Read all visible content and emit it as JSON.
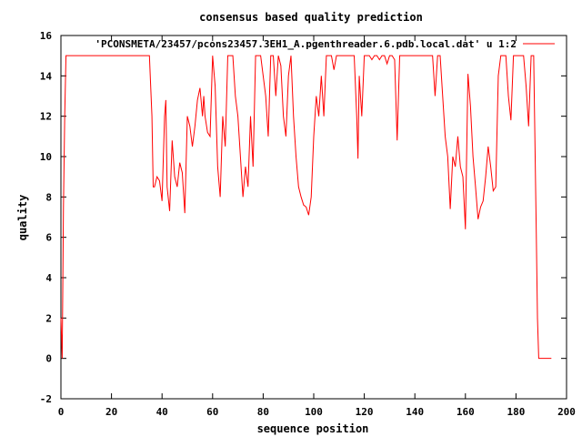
{
  "chart_data": {
    "type": "line",
    "title": "consensus based quality prediction",
    "xlabel": "sequence position",
    "ylabel": "quality",
    "xlim": [
      0,
      200
    ],
    "ylim": [
      -2,
      16
    ],
    "xticks": [
      0,
      20,
      40,
      60,
      80,
      100,
      120,
      140,
      160,
      180,
      200
    ],
    "yticks": [
      -2,
      0,
      2,
      4,
      6,
      8,
      10,
      12,
      14,
      16
    ],
    "grid": false,
    "legend_position": "top-right",
    "line_color": "#ff0000",
    "series": [
      {
        "name": "'PCONSMETA/23457/pcons23457.3EH1_A.pgenthreader.6.pdb.local.dat' u 1:2",
        "points": [
          [
            0,
            2.0
          ],
          [
            0.5,
            0.0
          ],
          [
            1,
            7.5
          ],
          [
            1.5,
            12.0
          ],
          [
            2,
            15.0
          ],
          [
            35,
            15.0
          ],
          [
            36,
            12.0
          ],
          [
            36.5,
            8.5
          ],
          [
            37,
            8.5
          ],
          [
            38,
            9.0
          ],
          [
            39,
            8.8
          ],
          [
            40,
            7.8
          ],
          [
            41,
            12.0
          ],
          [
            41.5,
            12.8
          ],
          [
            42,
            8.5
          ],
          [
            43,
            7.3
          ],
          [
            44,
            10.8
          ],
          [
            45,
            9.0
          ],
          [
            46,
            8.5
          ],
          [
            47,
            9.7
          ],
          [
            48,
            9.2
          ],
          [
            49,
            7.2
          ],
          [
            50,
            12.0
          ],
          [
            51,
            11.5
          ],
          [
            52,
            10.5
          ],
          [
            53,
            11.5
          ],
          [
            54,
            12.8
          ],
          [
            55,
            13.4
          ],
          [
            56,
            12.0
          ],
          [
            56.5,
            13.0
          ],
          [
            57,
            12.0
          ],
          [
            58,
            11.2
          ],
          [
            59,
            11.0
          ],
          [
            60,
            15.0
          ],
          [
            61,
            13.5
          ],
          [
            62,
            9.5
          ],
          [
            63,
            8.0
          ],
          [
            64,
            12.0
          ],
          [
            65,
            10.5
          ],
          [
            66,
            15.0
          ],
          [
            68,
            15.0
          ],
          [
            69,
            13.0
          ],
          [
            70,
            12.0
          ],
          [
            71,
            10.0
          ],
          [
            72,
            8.0
          ],
          [
            73,
            9.5
          ],
          [
            74,
            8.5
          ],
          [
            75,
            12.0
          ],
          [
            76,
            9.5
          ],
          [
            77,
            15.0
          ],
          [
            79,
            15.0
          ],
          [
            80,
            14.0
          ],
          [
            81,
            13.0
          ],
          [
            82,
            11.0
          ],
          [
            83,
            15.0
          ],
          [
            84,
            15.0
          ],
          [
            85,
            13.0
          ],
          [
            86,
            15.0
          ],
          [
            87,
            14.5
          ],
          [
            88,
            12.0
          ],
          [
            89,
            11.0
          ],
          [
            90,
            14.0
          ],
          [
            91,
            15.0
          ],
          [
            92,
            12.0
          ],
          [
            93,
            10.0
          ],
          [
            94,
            8.5
          ],
          [
            95,
            8.0
          ],
          [
            96,
            7.6
          ],
          [
            97,
            7.5
          ],
          [
            98,
            7.1
          ],
          [
            99,
            8.0
          ],
          [
            100,
            11.0
          ],
          [
            101,
            13.0
          ],
          [
            102,
            12.0
          ],
          [
            103,
            14.0
          ],
          [
            104,
            12.0
          ],
          [
            105,
            15.0
          ],
          [
            107,
            15.0
          ],
          [
            108,
            14.3
          ],
          [
            109,
            15.0
          ],
          [
            116,
            15.0
          ],
          [
            117,
            12.0
          ],
          [
            117.5,
            9.9
          ],
          [
            118,
            14.0
          ],
          [
            119,
            12.0
          ],
          [
            120,
            15.0
          ],
          [
            122,
            15.0
          ],
          [
            123,
            14.8
          ],
          [
            124,
            15.0
          ],
          [
            125,
            15.0
          ],
          [
            126,
            14.8
          ],
          [
            127,
            15.0
          ],
          [
            128,
            15.0
          ],
          [
            129,
            14.6
          ],
          [
            130,
            15.0
          ],
          [
            131,
            15.0
          ],
          [
            132,
            14.8
          ],
          [
            133,
            10.8
          ],
          [
            134,
            15.0
          ],
          [
            147,
            15.0
          ],
          [
            148,
            13.0
          ],
          [
            149,
            15.0
          ],
          [
            150,
            15.0
          ],
          [
            151,
            13.0
          ],
          [
            152,
            11.0
          ],
          [
            153,
            10.0
          ],
          [
            154,
            7.4
          ],
          [
            155,
            10.0
          ],
          [
            156,
            9.5
          ],
          [
            157,
            11.0
          ],
          [
            158,
            9.5
          ],
          [
            159,
            9.0
          ],
          [
            160,
            6.4
          ],
          [
            161,
            14.1
          ],
          [
            162,
            12.5
          ],
          [
            163,
            10.0
          ],
          [
            164,
            8.5
          ],
          [
            165,
            6.9
          ],
          [
            166,
            7.5
          ],
          [
            167,
            7.8
          ],
          [
            168,
            9.0
          ],
          [
            169,
            10.5
          ],
          [
            170,
            9.5
          ],
          [
            171,
            8.3
          ],
          [
            172,
            8.5
          ],
          [
            173,
            14.0
          ],
          [
            174,
            15.0
          ],
          [
            176,
            15.0
          ],
          [
            177,
            13.0
          ],
          [
            178,
            11.8
          ],
          [
            179,
            15.0
          ],
          [
            183,
            15.0
          ],
          [
            184,
            13.5
          ],
          [
            185,
            11.5
          ],
          [
            186,
            15.0
          ],
          [
            187,
            15.0
          ],
          [
            188,
            6.5
          ],
          [
            188.5,
            2.0
          ],
          [
            189,
            0.0
          ],
          [
            194,
            0.0
          ]
        ]
      }
    ]
  }
}
